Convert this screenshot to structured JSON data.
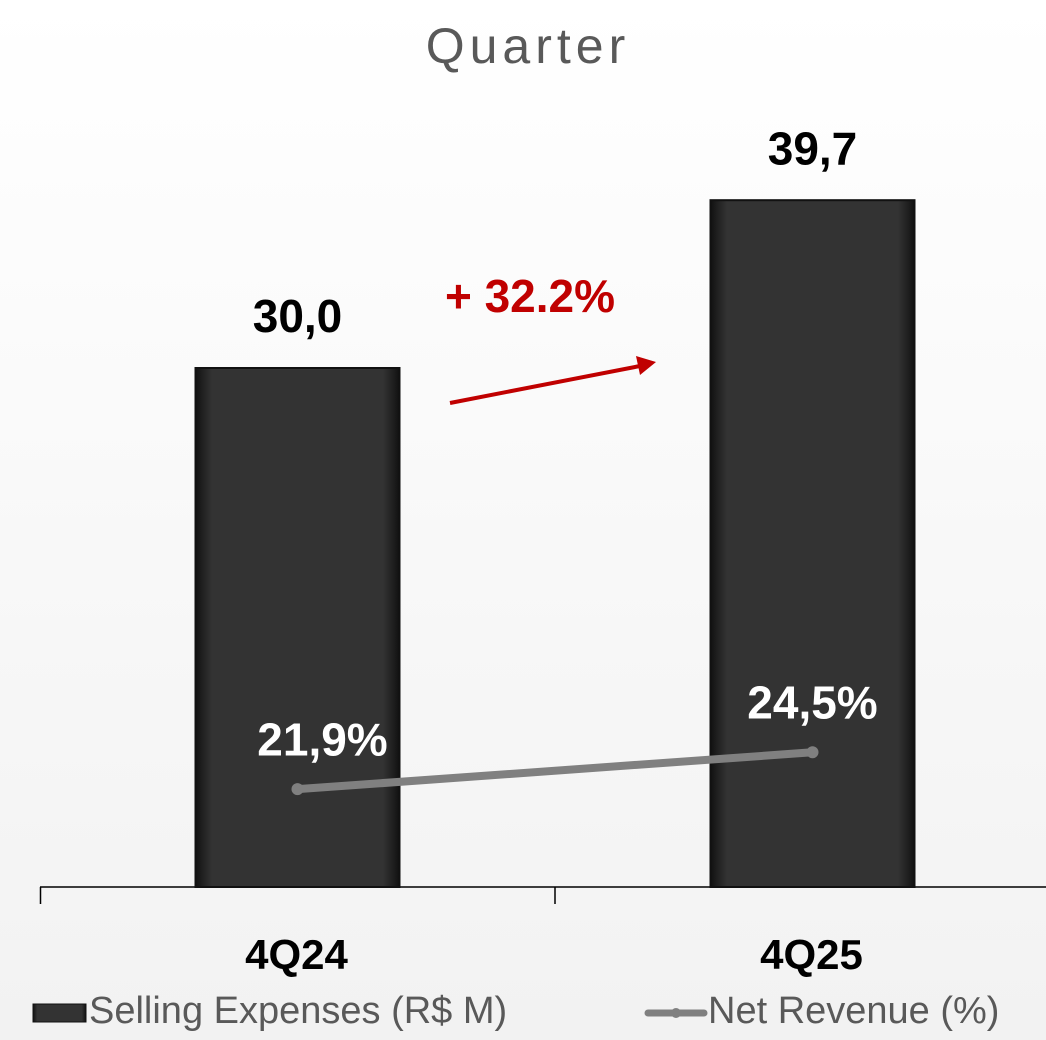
{
  "chart_data": {
    "type": "bar",
    "title": "Quarter",
    "categories": [
      "4Q24",
      "4Q25"
    ],
    "series": [
      {
        "name": "Selling Expenses (R$ M)",
        "type": "bar",
        "color": "#262626",
        "values": [
          30.0,
          39.7
        ],
        "value_labels": [
          "30,0",
          "39,7"
        ]
      },
      {
        "name": "Net Revenue (%)",
        "type": "line",
        "axis": "y2",
        "color": "#808080",
        "values": [
          21.9,
          24.5
        ],
        "value_labels": [
          "21,9%",
          "24,5%"
        ]
      }
    ],
    "annotation": "+ 32.2%",
    "annotation_color": "#c00000",
    "ylim": [
      0,
      50
    ],
    "y2lim": [
      15,
      76
    ],
    "legend": "bottom"
  }
}
